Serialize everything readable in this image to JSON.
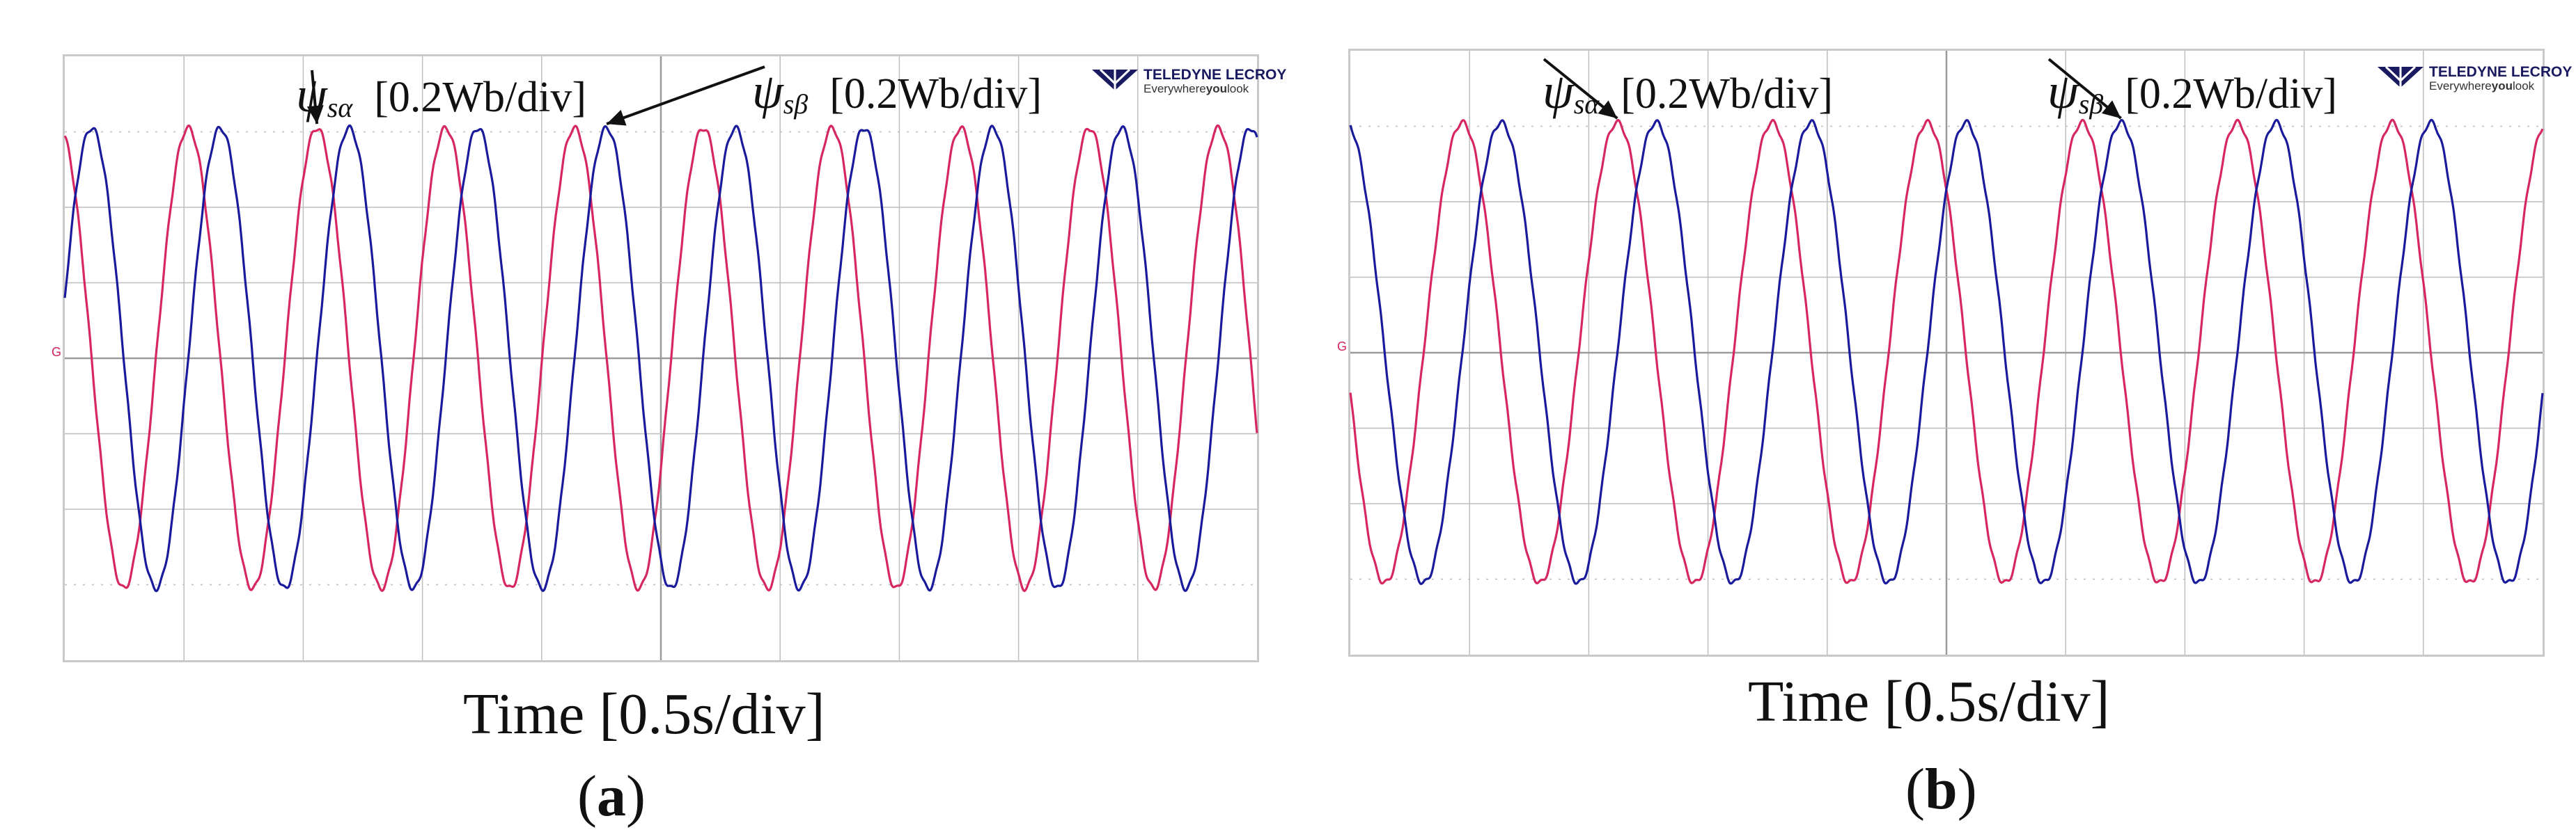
{
  "colors": {
    "alpha": "#d6285f",
    "beta": "#1a1a9c",
    "grid": "#bdbdbd",
    "arrow": "#111111"
  },
  "panels": [
    {
      "caption_open": "(",
      "caption_letter": "a",
      "caption_close": ")",
      "xlabel": "Time [0.5s/div]",
      "label_alpha_psi": "ψ",
      "label_alpha_sub": "sα",
      "label_alpha_scale": "[0.2Wb/div]",
      "label_beta_psi": "ψ",
      "label_beta_sub": "sβ",
      "label_beta_scale": "[0.2Wb/div]",
      "brand_name": "TELEDYNE LECROY",
      "brand_tag_pre": "Everywhere",
      "brand_tag_bold": "you",
      "brand_tag_post": "look",
      "channel_marker": "G"
    },
    {
      "caption_open": "(",
      "caption_letter": "b",
      "caption_close": ")",
      "xlabel": "Time [0.5s/div]",
      "label_alpha_psi": "ψ",
      "label_alpha_sub": "sα",
      "label_alpha_scale": "[0.2Wb/div]",
      "label_beta_psi": "ψ",
      "label_beta_sub": "sβ",
      "label_beta_scale": "[0.2Wb/div]",
      "brand_name": "TELEDYNE LECROY",
      "brand_tag_pre": "Everywhere",
      "brand_tag_bold": "you",
      "brand_tag_post": "look",
      "channel_marker": "G"
    }
  ],
  "chart_data": [
    {
      "type": "line",
      "xlabel": "Time [0.5s/div]",
      "x_unit": "div",
      "y_unit": "div",
      "xlim": [
        0,
        10
      ],
      "ylim": [
        -4,
        4
      ],
      "grid": true,
      "series": [
        {
          "name": "ψsα",
          "amplitude_div": 3.05,
          "period_div": 1.08,
          "phase_at_x0_deg": 15
        },
        {
          "name": "ψsβ",
          "amplitude_div": 3.05,
          "period_div": 1.08,
          "phase_at_x0_deg": -75
        }
      ]
    },
    {
      "type": "line",
      "xlabel": "Time [0.5s/div]",
      "x_unit": "div",
      "y_unit": "div",
      "xlim": [
        0,
        10
      ],
      "ylim": [
        -4,
        4
      ],
      "grid": true,
      "series": [
        {
          "name": "ψsα",
          "amplitude_div": 3.05,
          "period_div": 1.3,
          "phase_at_x0_deg": 100
        },
        {
          "name": "ψsβ",
          "amplitude_div": 3.05,
          "period_div": 1.3,
          "phase_at_x0_deg": 10
        }
      ]
    }
  ]
}
